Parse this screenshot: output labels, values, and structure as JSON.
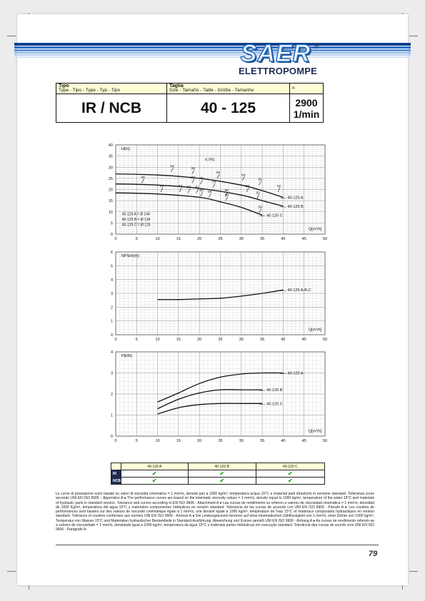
{
  "brand": {
    "name": "SAER",
    "sub": "ELETTROPOMPE",
    "reg": "®"
  },
  "info": {
    "tipo_label": "Tipo",
    "tipo_sub": "Type - Tipo - Type - Typ - Tipo",
    "taglia_label": "Taglia",
    "taglia_sub": "Size - Tamaño - Taille - Größe - Tamanho",
    "n_label": "n",
    "tipo_value": "IR / NCB",
    "taglia_value": "40 - 125",
    "n_value": "2900 1/min"
  },
  "chart_data": [
    {
      "type": "line",
      "ylabel": "H[m]",
      "xlabel": "Q[m³/h]",
      "xlim": [
        0,
        50
      ],
      "ylim": [
        0,
        40
      ],
      "xticks": [
        "0",
        "5",
        "10",
        "15",
        "20",
        "25",
        "30",
        "35",
        "40",
        "45",
        "50"
      ],
      "yticks": [
        "0",
        "5",
        "10",
        "15",
        "20",
        "25",
        "30",
        "35",
        "40"
      ],
      "grid": true,
      "series": [
        {
          "name": "40-125 A",
          "x": [
            0,
            10,
            20,
            30,
            35,
            40
          ],
          "y": [
            27,
            26.5,
            25,
            22,
            19.5,
            16.5
          ]
        },
        {
          "name": "40-125 B",
          "x": [
            0,
            10,
            20,
            30,
            35,
            40
          ],
          "y": [
            22.5,
            22,
            20.5,
            17.5,
            15,
            12.5
          ]
        },
        {
          "name": "40-125 C",
          "x": [
            0,
            10,
            20,
            25,
            30,
            35
          ],
          "y": [
            18.5,
            18,
            16.5,
            14.5,
            12,
            8.5
          ]
        }
      ],
      "efficiency_label": "η (%)",
      "efficiency_marks": [
        {
          "text": "48",
          "q": 6.5,
          "h": 24.5
        },
        {
          "text": "54",
          "q": 13.5,
          "h": 29.5
        },
        {
          "text": "58",
          "q": 18.5,
          "h": 28.5
        },
        {
          "text": "48",
          "q": 11,
          "h": 20.5
        },
        {
          "text": "54",
          "q": 15.5,
          "h": 20.5
        },
        {
          "text": "58",
          "q": 17.5,
          "h": 20
        },
        {
          "text": "62",
          "q": 19.5,
          "h": 20
        },
        {
          "text": "64",
          "q": 18.5,
          "h": 24.5
        },
        {
          "text": "65",
          "q": 20.5,
          "h": 24
        },
        {
          "text": "66",
          "q": 24.5,
          "h": 26.5
        },
        {
          "text": "66",
          "q": 23.5,
          "h": 22.5
        },
        {
          "text": "64",
          "q": 20.5,
          "h": 18.5
        },
        {
          "text": "65",
          "q": 22.5,
          "h": 18
        },
        {
          "text": "66",
          "q": 26.5,
          "h": 18.5
        },
        {
          "text": "64",
          "q": 30.5,
          "h": 25.5
        },
        {
          "text": "66",
          "q": 31.5,
          "h": 20.5
        },
        {
          "text": "65",
          "q": 34.5,
          "h": 23.5
        },
        {
          "text": "63",
          "q": 34,
          "h": 17.5
        },
        {
          "text": "62",
          "q": 39,
          "h": 20.5
        },
        {
          "text": "60",
          "q": 26.5,
          "h": 16.5
        },
        {
          "text": "59",
          "q": 34.5,
          "h": 11
        }
      ],
      "diameters": [
        "40-125 A = Ø 144",
        "40-125 B = Ø 134",
        "40-125 C = Ø 125"
      ]
    },
    {
      "type": "line",
      "ylabel": "NPSHr[m]",
      "xlabel": "Q[m³/h]",
      "xlim": [
        0,
        50
      ],
      "ylim": [
        0,
        6
      ],
      "xticks": [
        "0",
        "5",
        "10",
        "15",
        "20",
        "25",
        "30",
        "35",
        "40",
        "45",
        "50"
      ],
      "yticks": [
        "0",
        "1",
        "2",
        "3",
        "4",
        "5",
        "6"
      ],
      "grid": true,
      "series": [
        {
          "name": "40-125 A-B-C",
          "x": [
            10,
            15,
            20,
            25,
            30,
            35,
            40
          ],
          "y": [
            2.55,
            2.55,
            2.6,
            2.65,
            2.8,
            3.0,
            3.25
          ]
        }
      ]
    },
    {
      "type": "line",
      "ylabel": "P[kW]",
      "xlabel": "Q[m³/h]",
      "xlim": [
        0,
        50
      ],
      "ylim": [
        0,
        4
      ],
      "xticks": [
        "0",
        "5",
        "10",
        "15",
        "20",
        "25",
        "30",
        "35",
        "40",
        "45",
        "50"
      ],
      "yticks": [
        "0",
        "1",
        "2",
        "3",
        "4"
      ],
      "grid": true,
      "series": [
        {
          "name": "40-125 A",
          "x": [
            10,
            15,
            20,
            25,
            30,
            35,
            40
          ],
          "y": [
            1.62,
            2.05,
            2.5,
            2.8,
            2.95,
            3.0,
            3.0
          ]
        },
        {
          "name": "40-125 B",
          "x": [
            10,
            15,
            20,
            25,
            30,
            35
          ],
          "y": [
            1.3,
            1.75,
            2.05,
            2.2,
            2.2,
            2.2
          ]
        },
        {
          "name": "40-125 C",
          "x": [
            10,
            15,
            20,
            25,
            30,
            35
          ],
          "y": [
            1.05,
            1.35,
            1.5,
            1.55,
            1.55,
            1.55
          ]
        }
      ]
    }
  ],
  "compat": {
    "headers": [
      "40-125 A",
      "40-125 B",
      "40-125 C"
    ],
    "rows": [
      {
        "label": "IR",
        "marks": [
          "✔",
          "✔",
          "✔"
        ]
      },
      {
        "label": "NCB",
        "marks": [
          "✔",
          "✔",
          "✔"
        ]
      }
    ]
  },
  "note": "Le curve di prestazione sono basate su valori di viscosità cinematica = 1 mm²/s, densità pari a 1000 kg/m³, temperatura acqua 15°C e materiali parti idrauliche in versione standard. Tolleranza curve secondo UNI EN ISO 9906 – Appendice A ● The performance curves are based on the kinematic viscosity values = 1 mm²/s, density equal to 1000 kg/m³, temperature of the water 15°C and materials of hydraulic parts in standard version. Tolerance and curves according to EN ISO 9906 - Attachment A ● Las curvas de rendimiento se refieren a valores de viscosidad cinemática = 1 mm²/s, densidad de 1000 Kg/m³, temperatura del agua 15°C y materiales componentes hidráulicos en versión standard. Tolerancia de las curvas de acuerdo con UNI EN ISO 9906 - Párrafo A ● Les courbes de performances sont basées sur des valeurs de viscosité cinématique égale à 1 mm²/s, une densité égale à 1000 kg/m³, température de l'eau 15°C et matériaux composants hydrauliques en version standard. Tolérance et courbes conformes aux normes UNI EN ISO 9906 - Annexe A ● Die Leistungskurven beruhen auf einer kinematischen Zähflüssigkeit von 1 mm²/s, einer Dichte von 1000 kg/m³, Temperatur von Wasser 15°C und Materialien hydraulischer Bestandteile in Standard-Ausführung. Abweichung und Kurven gemäß UNI EN ISO 9906 - Anhang A ● As curvas de rendimento referem-se a valores de viscosidade = 1 mm²/s, densidade igual a 1000 kg/m³, temperatura da água 15°C e materiais partes hidráulicas em execução standard. Tolerância das curvas de acordo com UNI EN ISO 9906 - Parágrafo A.",
  "page_number": "79"
}
